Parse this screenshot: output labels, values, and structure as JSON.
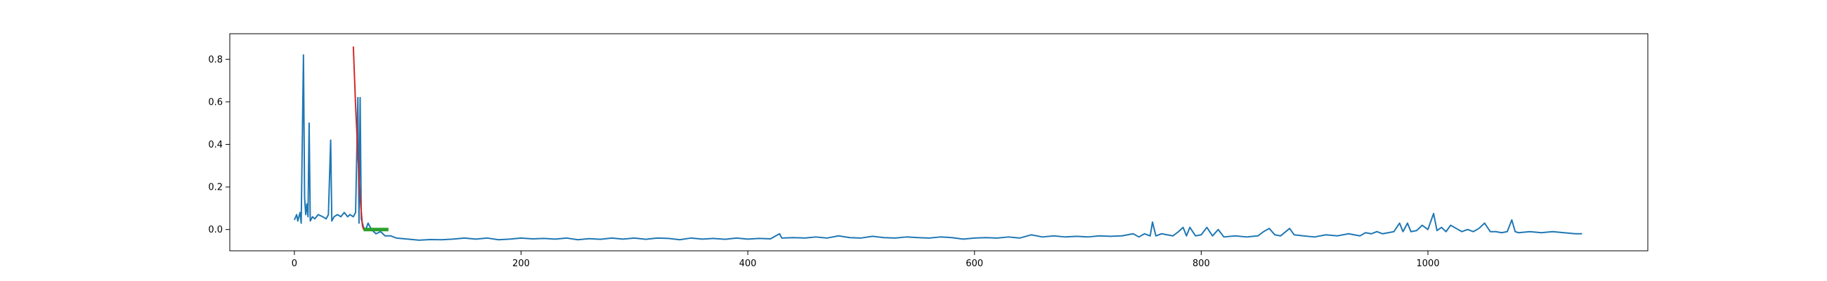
{
  "chart_data": {
    "type": "line",
    "title": "",
    "xlabel": "",
    "ylabel": "",
    "xlim": [
      -57,
      1194
    ],
    "ylim": [
      -0.1,
      0.92
    ],
    "x_ticks": [
      0,
      200,
      400,
      600,
      800,
      1000
    ],
    "x_tick_labels": [
      "0",
      "200",
      "400",
      "600",
      "800",
      "1000"
    ],
    "y_ticks": [
      0.0,
      0.2,
      0.4,
      0.6,
      0.8
    ],
    "y_tick_labels": [
      "0.0",
      "0.2",
      "0.4",
      "0.6",
      "0.8"
    ],
    "grid": false,
    "legend": "none",
    "series": [
      {
        "color": "#1f77b4",
        "points": [
          [
            0,
            0.045
          ],
          [
            2,
            0.07
          ],
          [
            3,
            0.04
          ],
          [
            5,
            0.08
          ],
          [
            6,
            0.03
          ],
          [
            8,
            0.82
          ],
          [
            9,
            0.15
          ],
          [
            10,
            0.07
          ],
          [
            11,
            0.12
          ],
          [
            12,
            0.06
          ],
          [
            13,
            0.5
          ],
          [
            14,
            0.04
          ],
          [
            16,
            0.06
          ],
          [
            18,
            0.05
          ],
          [
            21,
            0.07
          ],
          [
            25,
            0.06
          ],
          [
            28,
            0.05
          ],
          [
            30,
            0.07
          ],
          [
            32,
            0.42
          ],
          [
            33,
            0.04
          ],
          [
            35,
            0.06
          ],
          [
            38,
            0.07
          ],
          [
            41,
            0.06
          ],
          [
            44,
            0.08
          ],
          [
            47,
            0.06
          ],
          [
            49,
            0.07
          ],
          [
            52,
            0.06
          ],
          [
            54,
            0.08
          ],
          [
            56,
            0.62
          ],
          [
            57,
            0.03
          ],
          [
            58,
            0.62
          ],
          [
            59,
            0.05
          ],
          [
            61,
            0.01
          ],
          [
            63,
            0.0
          ],
          [
            65,
            0.03
          ],
          [
            68,
            0.0
          ],
          [
            72,
            -0.02
          ],
          [
            76,
            -0.01
          ],
          [
            80,
            -0.03
          ],
          [
            85,
            -0.03
          ],
          [
            90,
            -0.04
          ],
          [
            100,
            -0.045
          ],
          [
            110,
            -0.05
          ],
          [
            120,
            -0.047
          ],
          [
            130,
            -0.048
          ],
          [
            140,
            -0.045
          ],
          [
            150,
            -0.04
          ],
          [
            160,
            -0.045
          ],
          [
            170,
            -0.04
          ],
          [
            180,
            -0.048
          ],
          [
            190,
            -0.045
          ],
          [
            200,
            -0.04
          ],
          [
            210,
            -0.044
          ],
          [
            220,
            -0.042
          ],
          [
            230,
            -0.045
          ],
          [
            240,
            -0.04
          ],
          [
            250,
            -0.048
          ],
          [
            260,
            -0.043
          ],
          [
            270,
            -0.046
          ],
          [
            280,
            -0.04
          ],
          [
            290,
            -0.045
          ],
          [
            300,
            -0.04
          ],
          [
            310,
            -0.046
          ],
          [
            320,
            -0.04
          ],
          [
            330,
            -0.042
          ],
          [
            340,
            -0.048
          ],
          [
            350,
            -0.04
          ],
          [
            360,
            -0.045
          ],
          [
            370,
            -0.042
          ],
          [
            380,
            -0.046
          ],
          [
            390,
            -0.04
          ],
          [
            400,
            -0.045
          ],
          [
            410,
            -0.042
          ],
          [
            420,
            -0.044
          ],
          [
            428,
            -0.02
          ],
          [
            430,
            -0.04
          ],
          [
            440,
            -0.038
          ],
          [
            450,
            -0.04
          ],
          [
            460,
            -0.035
          ],
          [
            470,
            -0.04
          ],
          [
            480,
            -0.03
          ],
          [
            490,
            -0.038
          ],
          [
            500,
            -0.04
          ],
          [
            510,
            -0.032
          ],
          [
            520,
            -0.038
          ],
          [
            530,
            -0.04
          ],
          [
            540,
            -0.035
          ],
          [
            550,
            -0.038
          ],
          [
            560,
            -0.04
          ],
          [
            570,
            -0.035
          ],
          [
            580,
            -0.038
          ],
          [
            590,
            -0.045
          ],
          [
            600,
            -0.04
          ],
          [
            610,
            -0.038
          ],
          [
            620,
            -0.04
          ],
          [
            630,
            -0.035
          ],
          [
            640,
            -0.04
          ],
          [
            650,
            -0.025
          ],
          [
            660,
            -0.035
          ],
          [
            670,
            -0.03
          ],
          [
            680,
            -0.035
          ],
          [
            690,
            -0.032
          ],
          [
            700,
            -0.035
          ],
          [
            710,
            -0.03
          ],
          [
            720,
            -0.032
          ],
          [
            730,
            -0.03
          ],
          [
            740,
            -0.02
          ],
          [
            745,
            -0.035
          ],
          [
            750,
            -0.02
          ],
          [
            755,
            -0.03
          ],
          [
            757,
            0.035
          ],
          [
            760,
            -0.03
          ],
          [
            765,
            -0.02
          ],
          [
            770,
            -0.025
          ],
          [
            775,
            -0.03
          ],
          [
            780,
            -0.01
          ],
          [
            784,
            0.01
          ],
          [
            787,
            -0.03
          ],
          [
            790,
            0.01
          ],
          [
            795,
            -0.03
          ],
          [
            800,
            -0.025
          ],
          [
            805,
            0.01
          ],
          [
            810,
            -0.03
          ],
          [
            815,
            0.0
          ],
          [
            820,
            -0.035
          ],
          [
            830,
            -0.03
          ],
          [
            840,
            -0.035
          ],
          [
            850,
            -0.03
          ],
          [
            855,
            -0.01
          ],
          [
            860,
            0.005
          ],
          [
            865,
            -0.025
          ],
          [
            870,
            -0.03
          ],
          [
            878,
            0.005
          ],
          [
            882,
            -0.025
          ],
          [
            890,
            -0.03
          ],
          [
            900,
            -0.035
          ],
          [
            910,
            -0.025
          ],
          [
            920,
            -0.03
          ],
          [
            930,
            -0.02
          ],
          [
            940,
            -0.03
          ],
          [
            945,
            -0.015
          ],
          [
            950,
            -0.02
          ],
          [
            955,
            -0.01
          ],
          [
            960,
            -0.02
          ],
          [
            965,
            -0.015
          ],
          [
            970,
            -0.01
          ],
          [
            975,
            0.03
          ],
          [
            978,
            -0.01
          ],
          [
            982,
            0.03
          ],
          [
            985,
            -0.01
          ],
          [
            990,
            -0.005
          ],
          [
            995,
            0.02
          ],
          [
            1000,
            0.0
          ],
          [
            1005,
            0.075
          ],
          [
            1008,
            -0.005
          ],
          [
            1012,
            0.01
          ],
          [
            1016,
            -0.01
          ],
          [
            1020,
            0.02
          ],
          [
            1025,
            0.005
          ],
          [
            1030,
            -0.01
          ],
          [
            1035,
            0.0
          ],
          [
            1040,
            -0.01
          ],
          [
            1045,
            0.005
          ],
          [
            1050,
            0.03
          ],
          [
            1055,
            -0.01
          ],
          [
            1060,
            -0.01
          ],
          [
            1065,
            -0.015
          ],
          [
            1070,
            -0.01
          ],
          [
            1074,
            0.045
          ],
          [
            1077,
            -0.01
          ],
          [
            1080,
            -0.015
          ],
          [
            1090,
            -0.01
          ],
          [
            1100,
            -0.015
          ],
          [
            1110,
            -0.01
          ],
          [
            1120,
            -0.015
          ],
          [
            1130,
            -0.02
          ],
          [
            1136,
            -0.02
          ]
        ]
      },
      {
        "color": "#d62728",
        "points": [
          [
            52,
            0.86
          ],
          [
            54,
            0.58
          ],
          [
            56,
            0.35
          ],
          [
            58,
            0.15
          ],
          [
            60,
            0.02
          ],
          [
            61,
            0.0
          ]
        ]
      },
      {
        "color": "#2ca02c",
        "points": [
          [
            61,
            0.0
          ],
          [
            66,
            0.0
          ],
          [
            71,
            0.0
          ],
          [
            76,
            0.0
          ],
          [
            81,
            0.0
          ],
          [
            83,
            0.0
          ]
        ]
      }
    ]
  }
}
